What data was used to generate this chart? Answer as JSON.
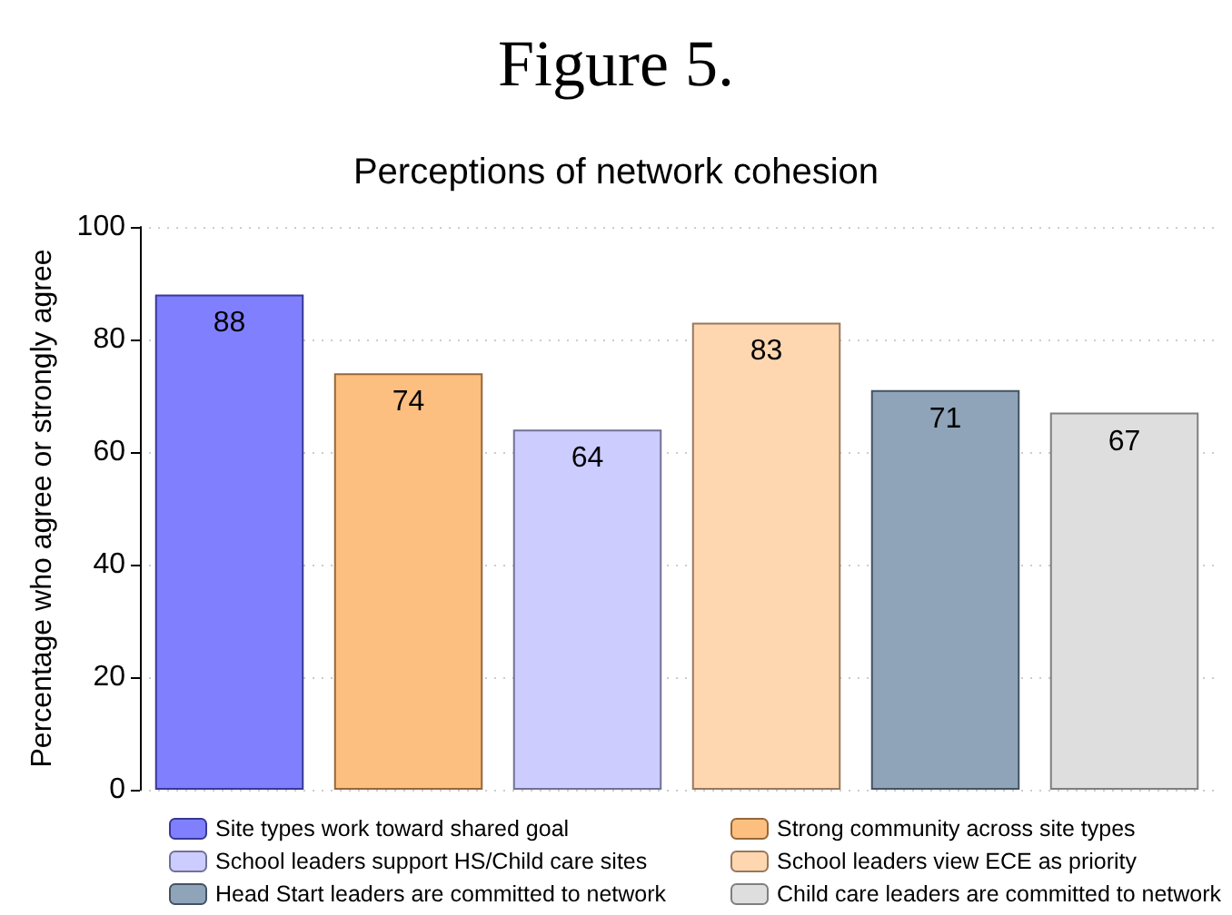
{
  "chart_data": {
    "type": "bar",
    "title": "Figure 5.",
    "subtitle": "Perceptions of network cohesion",
    "ylabel": "Percentage who agree or strongly agree",
    "categories": [
      null,
      null,
      null,
      null,
      null,
      null
    ],
    "series": [
      {
        "name": "Site types work toward shared goal",
        "color": "#8080ff",
        "values": [
          88,
          null,
          null,
          null,
          null,
          null
        ]
      },
      {
        "name": "Strong community across site types",
        "color": "#fdbf80",
        "values": [
          null,
          74,
          null,
          null,
          null,
          null
        ]
      },
      {
        "name": "School leaders support HS/Child care sites",
        "color": "#ccccff",
        "values": [
          null,
          null,
          64,
          null,
          null,
          null
        ]
      },
      {
        "name": "School leaders view ECE as priority",
        "color": "#fed6b0",
        "values": [
          null,
          null,
          null,
          83,
          null,
          null
        ]
      },
      {
        "name": "Head Start leaders are committed to network",
        "color": "#8fa4b9",
        "values": [
          null,
          null,
          null,
          null,
          71,
          null
        ]
      },
      {
        "name": "Child care leaders are committed to network",
        "color": "#dedede",
        "values": [
          null,
          null,
          null,
          null,
          null,
          67
        ]
      }
    ],
    "ylim": [
      0,
      100
    ],
    "yticks": [
      0,
      20,
      40,
      60,
      80,
      100
    ],
    "grid": "y",
    "legend": "bottom",
    "data_labels": true
  }
}
